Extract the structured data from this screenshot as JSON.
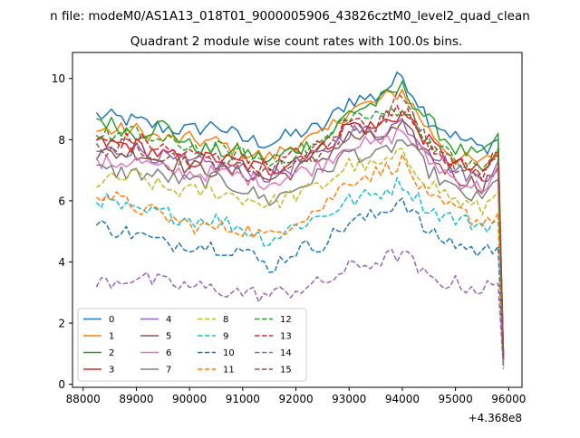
{
  "suptitle": "n file: modeM0/AS1A13_018T01_9000005906_43826cztM0_level2_quad_clean",
  "chart_data": {
    "type": "line",
    "title": "Quadrant 2 module wise count rates with 100.0s bins.",
    "xlabel": "",
    "ylabel": "",
    "x_offset_label": "+4.368e8",
    "xlim": [
      87800,
      96250
    ],
    "ylim": [
      -0.1,
      10.85
    ],
    "x_ticks": [
      88000,
      89000,
      90000,
      91000,
      92000,
      93000,
      94000,
      95000,
      96000
    ],
    "x_tick_labels": [
      "88000",
      "89000",
      "90000",
      "91000",
      "92000",
      "93000",
      "94000",
      "95000",
      "96000"
    ],
    "y_ticks": [
      0,
      2,
      4,
      6,
      8,
      10
    ],
    "y_tick_labels": [
      "0",
      "2",
      "4",
      "6",
      "8",
      "10"
    ],
    "grid": false,
    "legend_position": "lower-left",
    "legend_columns": 4,
    "x": [
      88250,
      89000,
      89500,
      90000,
      90500,
      91000,
      91500,
      92000,
      92500,
      93000,
      93500,
      94000,
      94500,
      95000,
      95500,
      95800,
      95900
    ],
    "series": [
      {
        "name": "0",
        "color": "#1f77b4",
        "dash": "solid",
        "values": [
          8.8,
          8.6,
          8.4,
          8.3,
          8.5,
          8.0,
          7.9,
          8.2,
          8.4,
          9.3,
          9.4,
          10.1,
          8.7,
          8.1,
          7.7,
          8.0,
          1.0
        ]
      },
      {
        "name": "1",
        "color": "#ff7f0e",
        "dash": "solid",
        "values": [
          8.3,
          8.3,
          8.0,
          8.0,
          7.9,
          7.6,
          7.4,
          7.9,
          8.1,
          9.0,
          9.2,
          9.6,
          8.3,
          7.4,
          7.2,
          7.6,
          0.9
        ]
      },
      {
        "name": "2",
        "color": "#2ca02c",
        "dash": "solid",
        "values": [
          8.7,
          8.2,
          8.5,
          7.8,
          7.6,
          7.6,
          7.3,
          7.7,
          7.9,
          8.9,
          9.2,
          9.7,
          8.6,
          7.7,
          7.4,
          8.2,
          0.9
        ]
      },
      {
        "name": "3",
        "color": "#d62728",
        "dash": "solid",
        "values": [
          7.9,
          7.8,
          7.5,
          7.3,
          7.4,
          7.2,
          7.0,
          7.4,
          7.7,
          8.5,
          8.4,
          8.9,
          7.9,
          7.2,
          6.9,
          7.5,
          0.9
        ]
      },
      {
        "name": "4",
        "color": "#9467bd",
        "dash": "solid",
        "values": [
          7.6,
          7.7,
          7.4,
          7.2,
          7.2,
          7.0,
          6.8,
          7.2,
          7.5,
          8.3,
          8.2,
          8.6,
          7.7,
          7.0,
          6.7,
          7.3,
          0.9
        ]
      },
      {
        "name": "5",
        "color": "#8c564b",
        "dash": "solid",
        "values": [
          7.5,
          7.6,
          7.3,
          7.1,
          7.0,
          6.9,
          6.7,
          7.0,
          7.4,
          8.1,
          8.0,
          8.4,
          7.5,
          6.8,
          6.5,
          7.1,
          0.8
        ]
      },
      {
        "name": "6",
        "color": "#e377c2",
        "dash": "solid",
        "values": [
          7.2,
          7.3,
          7.0,
          6.9,
          6.9,
          6.8,
          6.6,
          6.9,
          7.2,
          7.9,
          7.8,
          8.3,
          7.3,
          6.7,
          6.4,
          7.0,
          0.8
        ]
      },
      {
        "name": "7",
        "color": "#7f7f7f",
        "dash": "solid",
        "values": [
          7.0,
          6.9,
          6.8,
          6.6,
          6.7,
          6.4,
          6.0,
          6.4,
          6.9,
          7.6,
          7.4,
          8.0,
          7.0,
          6.3,
          6.0,
          6.7,
          0.8
        ]
      },
      {
        "name": "8",
        "color": "#bcbd22",
        "dash": "dashed",
        "values": [
          6.6,
          6.8,
          6.4,
          6.3,
          6.3,
          6.1,
          5.9,
          6.2,
          6.5,
          7.2,
          7.1,
          7.5,
          6.6,
          6.0,
          5.7,
          6.3,
          0.7
        ]
      },
      {
        "name": "9",
        "color": "#17becf",
        "dash": "dashed",
        "values": [
          6.1,
          5.6,
          5.6,
          5.4,
          5.4,
          5.1,
          4.7,
          5.2,
          5.5,
          6.0,
          6.2,
          6.6,
          5.7,
          5.4,
          5.2,
          5.3,
          0.7
        ]
      },
      {
        "name": "10",
        "color": "#1f77b4",
        "dash": "dashed",
        "values": [
          5.2,
          4.9,
          4.6,
          4.6,
          4.5,
          4.4,
          3.8,
          4.4,
          4.6,
          5.3,
          5.5,
          6.1,
          4.9,
          4.6,
          4.3,
          4.5,
          0.6
        ]
      },
      {
        "name": "11",
        "color": "#ff7f0e",
        "dash": "dashed",
        "values": [
          6.3,
          5.8,
          5.5,
          5.2,
          5.1,
          5.1,
          4.8,
          5.4,
          5.8,
          6.7,
          6.9,
          7.3,
          6.0,
          5.7,
          5.3,
          5.6,
          0.6
        ]
      },
      {
        "name": "12",
        "color": "#2ca02c",
        "dash": "dashed",
        "values": [
          8.1,
          8.2,
          7.9,
          7.8,
          7.7,
          7.5,
          7.2,
          7.6,
          7.9,
          8.8,
          8.7,
          9.1,
          8.0,
          7.3,
          7.0,
          7.7,
          0.9
        ]
      },
      {
        "name": "13",
        "color": "#d62728",
        "dash": "dashed",
        "values": [
          7.9,
          8.0,
          7.7,
          7.5,
          7.4,
          7.3,
          7.1,
          7.5,
          7.8,
          8.6,
          8.6,
          9.0,
          7.9,
          7.2,
          6.9,
          7.6,
          0.9
        ]
      },
      {
        "name": "14",
        "color": "#9467bd",
        "dash": "dashed",
        "values": [
          3.3,
          3.5,
          3.3,
          3.2,
          3.1,
          3.0,
          2.9,
          3.1,
          3.3,
          3.8,
          4.0,
          4.3,
          3.4,
          3.3,
          3.1,
          3.3,
          0.5
        ]
      },
      {
        "name": "15",
        "color": "#8c564b",
        "dash": "dashed",
        "values": [
          7.7,
          7.8,
          7.5,
          7.3,
          7.3,
          7.1,
          7.0,
          7.3,
          7.6,
          8.4,
          8.4,
          9.5,
          7.8,
          7.1,
          6.8,
          7.4,
          0.8
        ]
      }
    ]
  }
}
